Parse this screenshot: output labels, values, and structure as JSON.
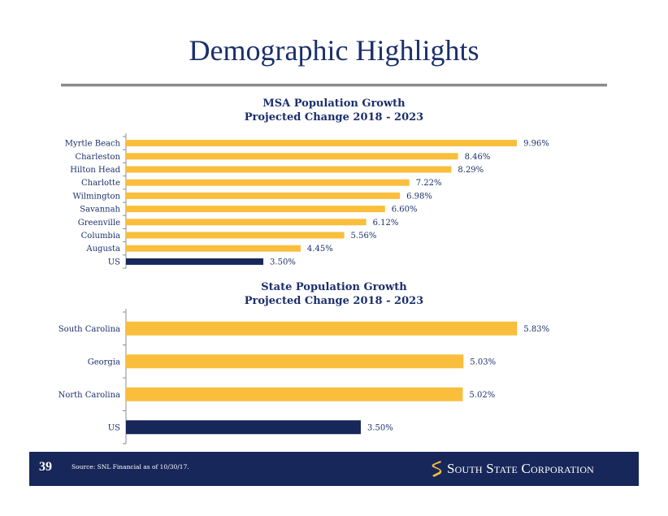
{
  "header": {
    "title": "Demographic Highlights"
  },
  "colors": {
    "accent": "#F9BE3B",
    "highlight": "#18275A",
    "text": "#1B2F6B",
    "rule": "#8C8C8C"
  },
  "charts": {
    "msa": {
      "title_line1": "MSA Population Growth",
      "title_line2": "Projected Change 2018 - 2023"
    },
    "state": {
      "title_line1": "State Population Growth",
      "title_line2": "Projected Change 2018 - 2023"
    }
  },
  "chart_data": [
    {
      "type": "bar",
      "orientation": "horizontal",
      "title": "MSA Population Growth Projected Change 2018 - 2023",
      "categories": [
        "Myrtle Beach",
        "Charleston",
        "Hilton Head",
        "Charlotte",
        "Wilmington",
        "Savannah",
        "Greenville",
        "Columbia",
        "Augusta",
        "US"
      ],
      "values": [
        9.96,
        8.46,
        8.29,
        7.22,
        6.98,
        6.6,
        6.12,
        5.56,
        4.45,
        3.5
      ],
      "labels": [
        "9.96%",
        "8.46%",
        "8.29%",
        "7.22%",
        "6.98%",
        "6.60%",
        "6.12%",
        "5.56%",
        "4.45%",
        "3.50%"
      ],
      "highlight_category": "US",
      "xlim": [
        0,
        10
      ],
      "grid": false
    },
    {
      "type": "bar",
      "orientation": "horizontal",
      "title": "State Population Growth Projected Change 2018 - 2023",
      "categories": [
        "South Carolina",
        "Georgia",
        "North Carolina",
        "US"
      ],
      "values": [
        5.83,
        5.03,
        5.02,
        3.5
      ],
      "labels": [
        "5.83%",
        "5.03%",
        "5.02%",
        "3.50%"
      ],
      "highlight_category": "US",
      "xlim": [
        0,
        5.85
      ],
      "grid": false
    }
  ],
  "footer": {
    "page_number": "39",
    "source": "Source: SNL Financial as of 10/30/17.",
    "brand": "South State Corporation",
    "logo_icon": "s-ribbon-logo-icon"
  }
}
